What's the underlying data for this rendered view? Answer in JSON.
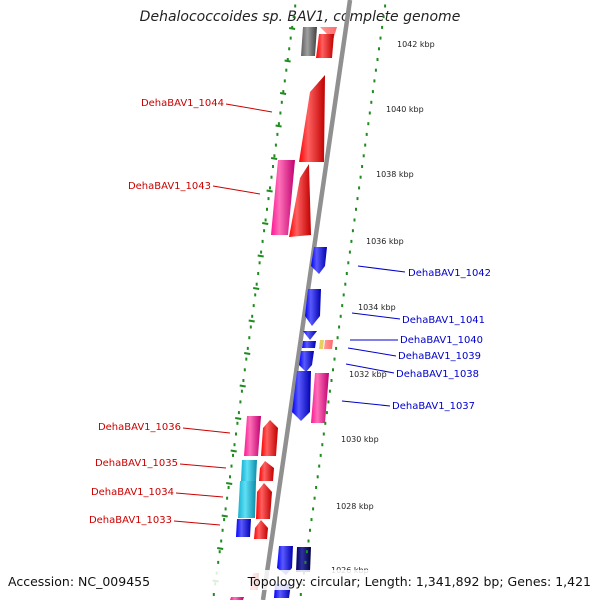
{
  "title": "Dehalococcoides sp. BAV1, complete genome",
  "footer": {
    "accession": "Accession: NC_009455",
    "summary": "Topology: circular; Length: 1,341,892 bp; Genes: 1,421"
  },
  "colors": {
    "forward_gene": "#ff0000",
    "reverse_gene": "#0000ff",
    "pink_gene": "#ff1493",
    "cyan_gene": "#1ec8e6",
    "navy_gene": "#0a0a7a",
    "grey_gene": "#707070",
    "backbone": "#909090",
    "tick": "#1e8c1e",
    "label_red": "#cc0000",
    "label_blue": "#0000cc"
  },
  "scale_labels": [
    "1042 kbp",
    "1040 kbp",
    "1038 kbp",
    "1036 kbp",
    "1034 kbp",
    "1032 kbp",
    "1030 kbp",
    "1028 kbp",
    "1026 kbp"
  ],
  "gene_labels_left": [
    "DehaBAV1_1044",
    "DehaBAV1_1043",
    "DehaBAV1_1036",
    "DehaBAV1_1035",
    "DehaBAV1_1034",
    "DehaBAV1_1033"
  ],
  "gene_labels_right": [
    "DehaBAV1_1042",
    "DehaBAV1_1041",
    "DehaBAV1_1040",
    "DehaBAV1_1039",
    "DehaBAV1_1038",
    "DehaBAV1_1037"
  ]
}
